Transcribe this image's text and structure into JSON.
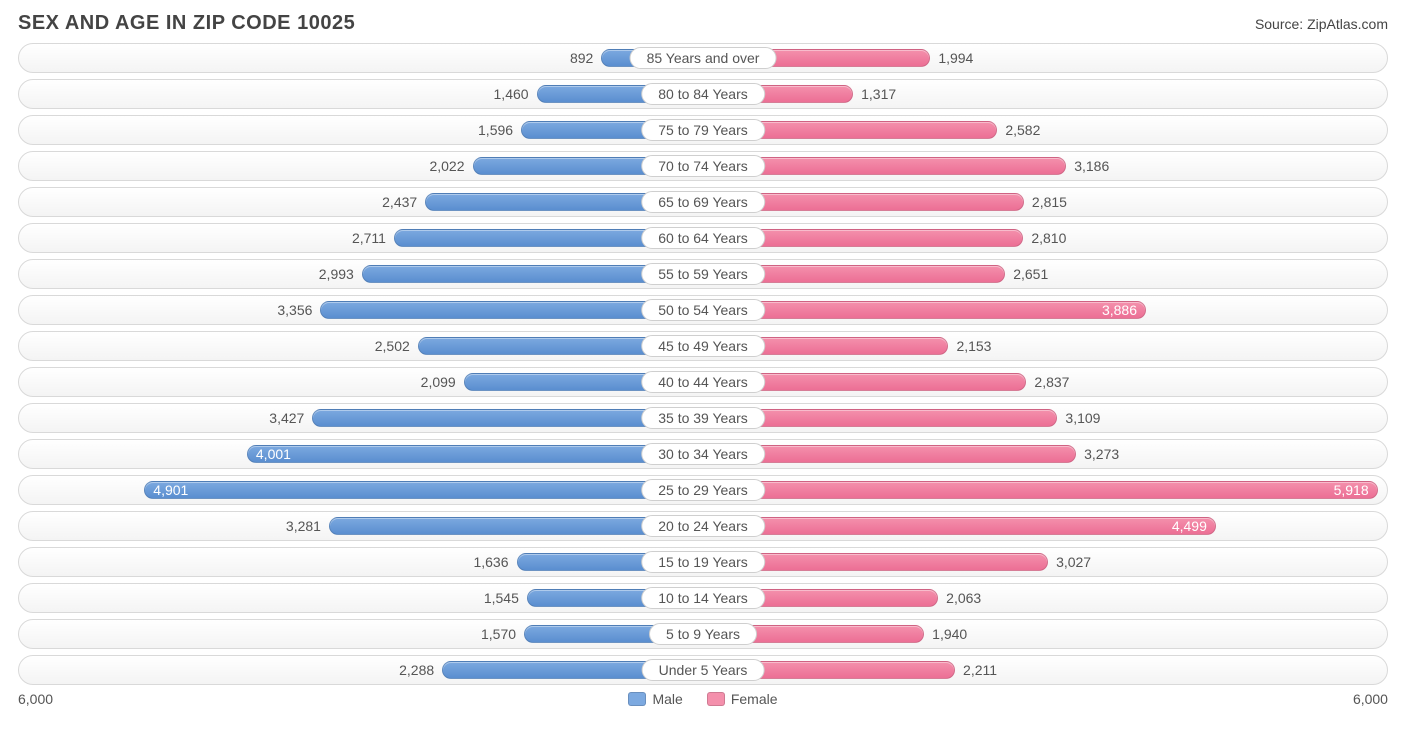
{
  "title": "SEX AND AGE IN ZIP CODE 10025",
  "source": "Source: ZipAtlas.com",
  "colors": {
    "male_bar": "#7ca9e0",
    "male_bar_dark": "#5a8ed0",
    "female_bar": "#f490ac",
    "female_bar_dark": "#ec6f95",
    "text_inside": "#ffffff",
    "text_outside": "#555555",
    "track_border": "#d9d9d9",
    "background": "#ffffff"
  },
  "axis": {
    "max": 6000,
    "left_label": "6,000",
    "right_label": "6,000",
    "inside_threshold": 3700
  },
  "legend": {
    "male": "Male",
    "female": "Female"
  },
  "rows": [
    {
      "label": "85 Years and over",
      "male": 892,
      "male_text": "892",
      "female": 1994,
      "female_text": "1,994"
    },
    {
      "label": "80 to 84 Years",
      "male": 1460,
      "male_text": "1,460",
      "female": 1317,
      "female_text": "1,317"
    },
    {
      "label": "75 to 79 Years",
      "male": 1596,
      "male_text": "1,596",
      "female": 2582,
      "female_text": "2,582"
    },
    {
      "label": "70 to 74 Years",
      "male": 2022,
      "male_text": "2,022",
      "female": 3186,
      "female_text": "3,186"
    },
    {
      "label": "65 to 69 Years",
      "male": 2437,
      "male_text": "2,437",
      "female": 2815,
      "female_text": "2,815"
    },
    {
      "label": "60 to 64 Years",
      "male": 2711,
      "male_text": "2,711",
      "female": 2810,
      "female_text": "2,810"
    },
    {
      "label": "55 to 59 Years",
      "male": 2993,
      "male_text": "2,993",
      "female": 2651,
      "female_text": "2,651"
    },
    {
      "label": "50 to 54 Years",
      "male": 3356,
      "male_text": "3,356",
      "female": 3886,
      "female_text": "3,886"
    },
    {
      "label": "45 to 49 Years",
      "male": 2502,
      "male_text": "2,502",
      "female": 2153,
      "female_text": "2,153"
    },
    {
      "label": "40 to 44 Years",
      "male": 2099,
      "male_text": "2,099",
      "female": 2837,
      "female_text": "2,837"
    },
    {
      "label": "35 to 39 Years",
      "male": 3427,
      "male_text": "3,427",
      "female": 3109,
      "female_text": "3,109"
    },
    {
      "label": "30 to 34 Years",
      "male": 4001,
      "male_text": "4,001",
      "female": 3273,
      "female_text": "3,273"
    },
    {
      "label": "25 to 29 Years",
      "male": 4901,
      "male_text": "4,901",
      "female": 5918,
      "female_text": "5,918"
    },
    {
      "label": "20 to 24 Years",
      "male": 3281,
      "male_text": "3,281",
      "female": 4499,
      "female_text": "4,499"
    },
    {
      "label": "15 to 19 Years",
      "male": 1636,
      "male_text": "1,636",
      "female": 3027,
      "female_text": "3,027"
    },
    {
      "label": "10 to 14 Years",
      "male": 1545,
      "male_text": "1,545",
      "female": 2063,
      "female_text": "2,063"
    },
    {
      "label": "5 to 9 Years",
      "male": 1570,
      "male_text": "1,570",
      "female": 1940,
      "female_text": "1,940"
    },
    {
      "label": "Under 5 Years",
      "male": 2288,
      "male_text": "2,288",
      "female": 2211,
      "female_text": "2,211"
    }
  ]
}
